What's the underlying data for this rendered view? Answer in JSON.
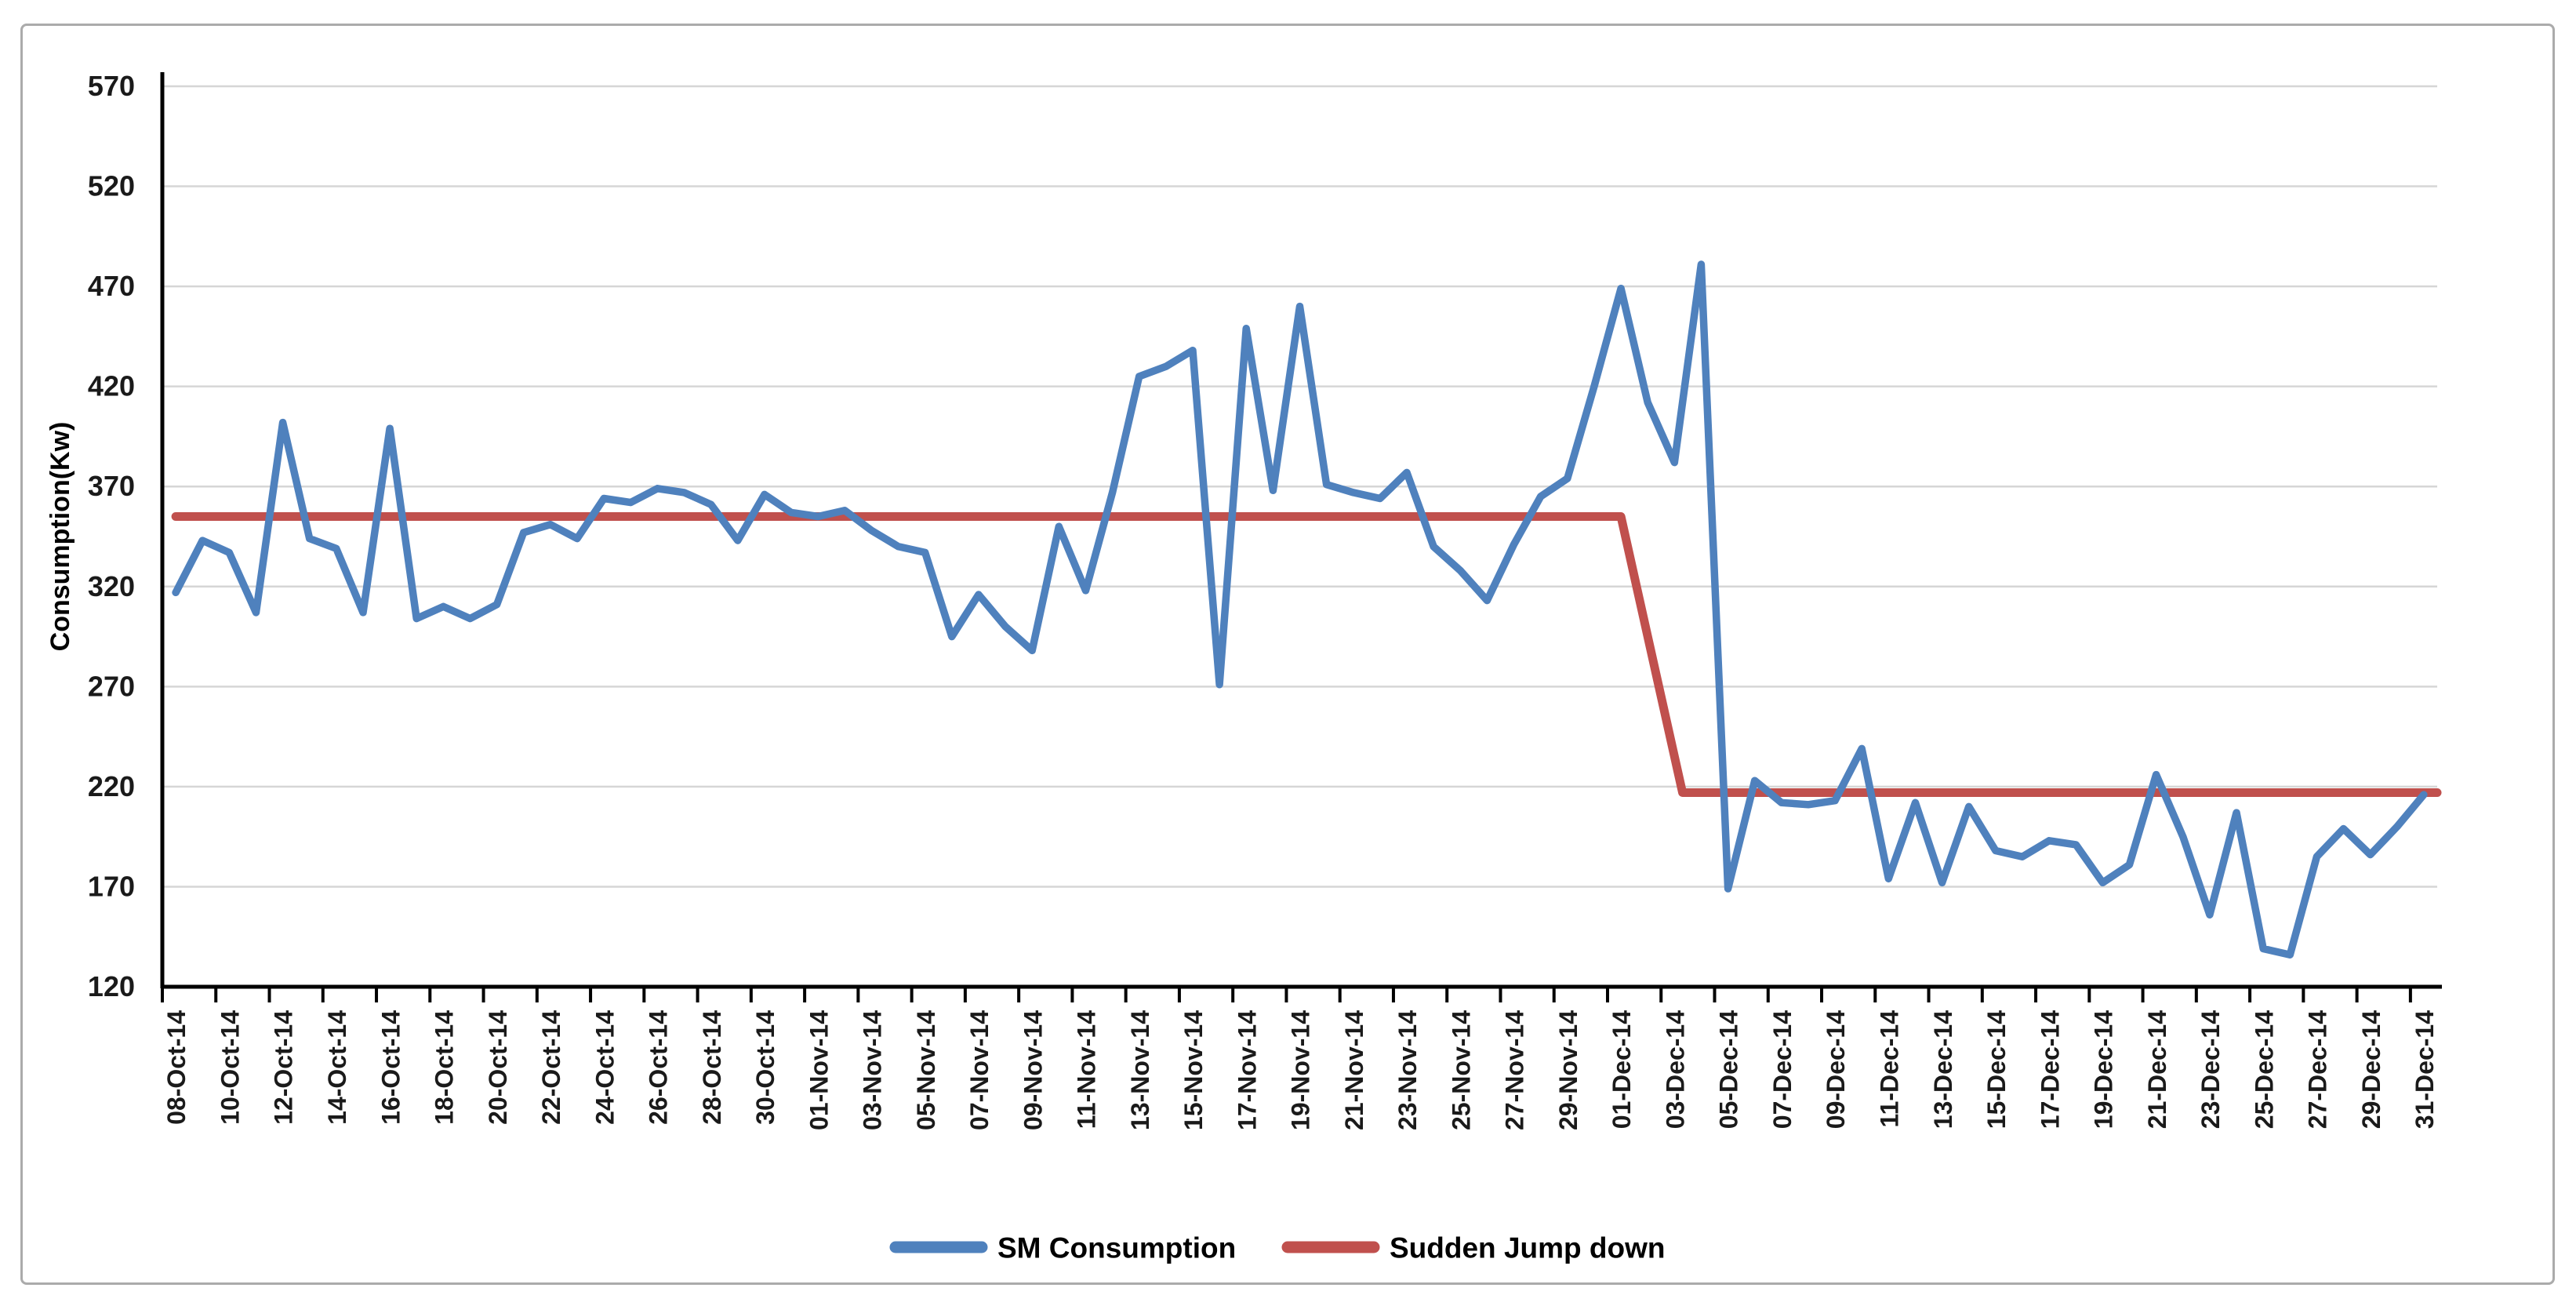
{
  "chart_data": {
    "type": "line",
    "title": "",
    "xlabel": "",
    "ylabel": "Consumption(Kw)",
    "ylim": [
      120,
      570
    ],
    "y_ticks": [
      570,
      520,
      470,
      420,
      370,
      320,
      270,
      220,
      170,
      120
    ],
    "grid": "horizontal",
    "legend_position": "bottom-center",
    "x_tick_labels": [
      "08-Oct-14",
      "10-Oct-14",
      "12-Oct-14",
      "14-Oct-14",
      "16-Oct-14",
      "18-Oct-14",
      "20-Oct-14",
      "22-Oct-14",
      "24-Oct-14",
      "26-Oct-14",
      "28-Oct-14",
      "30-Oct-14",
      "01-Nov-14",
      "03-Nov-14",
      "05-Nov-14",
      "07-Nov-14",
      "09-Nov-14",
      "11-Nov-14",
      "13-Nov-14",
      "15-Nov-14",
      "17-Nov-14",
      "19-Nov-14",
      "21-Nov-14",
      "23-Nov-14",
      "25-Nov-14",
      "27-Nov-14",
      "29-Nov-14",
      "01-Dec-14",
      "03-Dec-14",
      "05-Dec-14",
      "07-Dec-14",
      "09-Dec-14",
      "11-Dec-14",
      "13-Dec-14",
      "15-Dec-14",
      "17-Dec-14",
      "19-Dec-14",
      "21-Dec-14",
      "23-Dec-14",
      "25-Dec-14",
      "27-Dec-14",
      "29-Dec-14",
      "31-Dec-14"
    ],
    "x_labels_every_n_days": 2,
    "series": [
      {
        "name": "SM Consumption",
        "color": "#4f81bd",
        "values": [
          317,
          343,
          337,
          307,
          402,
          344,
          339,
          307,
          399,
          304,
          310,
          304,
          311,
          347,
          351,
          344,
          364,
          362,
          369,
          367,
          361,
          343,
          366,
          357,
          355,
          358,
          348,
          340,
          337,
          295,
          316,
          300,
          288,
          350,
          318,
          367,
          425,
          430,
          438,
          271,
          449,
          368,
          460,
          371,
          367,
          364,
          377,
          340,
          328,
          313,
          341,
          365,
          374,
          420,
          469,
          412,
          382,
          481,
          169,
          223,
          212,
          211,
          213,
          239,
          174,
          212,
          172,
          210,
          188,
          185,
          193,
          191,
          172,
          181,
          226,
          195,
          156,
          207,
          139,
          136,
          185,
          199,
          186,
          200,
          216
        ]
      },
      {
        "name": "Sudden Jump down",
        "color": "#c0504d",
        "description": "flat reference at 355 Kw until 01-Dec-14, steps down to 217 Kw",
        "level_before": 355,
        "level_after": 217,
        "keypoints_day_value": [
          [
            0,
            355
          ],
          [
            54,
            355
          ],
          [
            56.3,
            217
          ],
          [
            84.5,
            217
          ]
        ]
      }
    ]
  },
  "legend": {
    "items": [
      {
        "label": "SM Consumption",
        "color": "#4f81bd"
      },
      {
        "label": "Sudden Jump down",
        "color": "#c0504d"
      }
    ]
  },
  "axes": {
    "y_title": "Consumption(Kw)",
    "axis_color": "#000000",
    "gridline_color": "#d6d6d6",
    "label_color": "#1a1a1a"
  }
}
